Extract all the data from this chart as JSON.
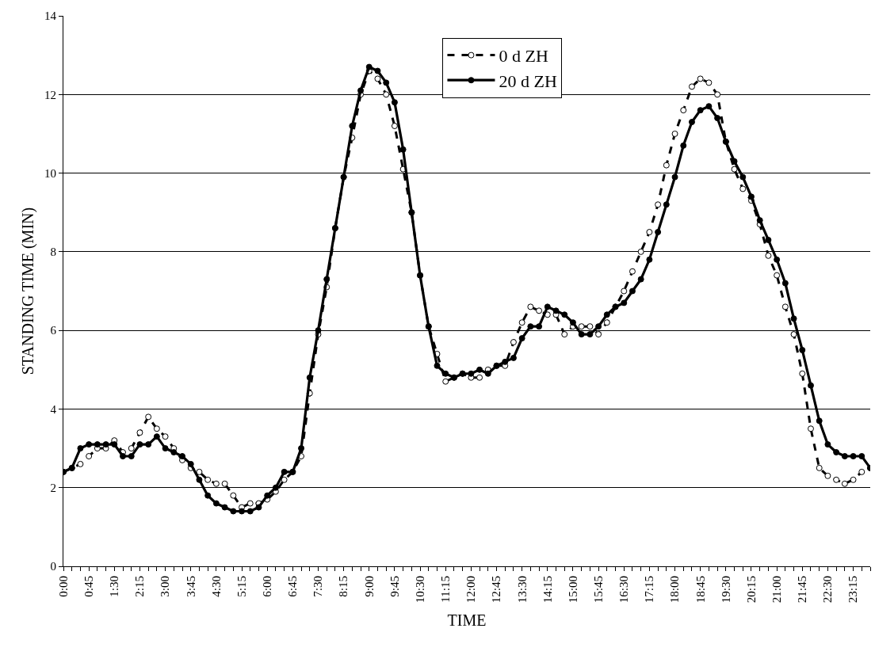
{
  "chart_data": {
    "type": "line",
    "xlabel": "TIME",
    "ylabel": "STANDING TIME (MIN)",
    "x": [
      0,
      0.25,
      0.5,
      0.75,
      1,
      1.25,
      1.5,
      1.75,
      2,
      2.25,
      2.5,
      2.75,
      3,
      3.25,
      3.5,
      3.75,
      4,
      4.25,
      4.5,
      4.75,
      5,
      5.25,
      5.5,
      5.75,
      6,
      6.25,
      6.5,
      6.75,
      7,
      7.25,
      7.5,
      7.75,
      8,
      8.25,
      8.5,
      8.75,
      9,
      9.25,
      9.5,
      9.75,
      10,
      10.25,
      10.5,
      10.75,
      11,
      11.25,
      11.5,
      11.75,
      12,
      12.25,
      12.5,
      12.75,
      13,
      13.25,
      13.5,
      13.75,
      14,
      14.25,
      14.5,
      14.75,
      15,
      15.25,
      15.5,
      15.75,
      16,
      16.25,
      16.5,
      16.75,
      17,
      17.25,
      17.5,
      17.75,
      18,
      18.25,
      18.5,
      18.75,
      19,
      19.25,
      19.5,
      19.75,
      20,
      20.25,
      20.5,
      20.75,
      21,
      21.25,
      21.5,
      21.75,
      22,
      22.25,
      22.5,
      22.75,
      23,
      23.25,
      23.5,
      23.75
    ],
    "series": [
      {
        "name": "0 d ZH",
        "color": "#000000",
        "line_style": "dashed",
        "values": [
          2.4,
          2.5,
          2.6,
          2.8,
          3.0,
          3.0,
          3.2,
          2.9,
          3.0,
          3.4,
          3.8,
          3.5,
          3.3,
          3.0,
          2.7,
          2.5,
          2.4,
          2.2,
          2.1,
          2.1,
          1.8,
          1.5,
          1.6,
          1.6,
          1.7,
          1.9,
          2.2,
          2.4,
          2.8,
          4.4,
          5.9,
          7.1,
          8.6,
          9.9,
          10.9,
          12.0,
          12.6,
          12.4,
          12.0,
          11.2,
          10.1,
          9.0,
          7.4,
          6.1,
          5.4,
          4.7,
          4.8,
          4.9,
          4.8,
          4.8,
          5.0,
          5.1,
          5.1,
          5.7,
          6.2,
          6.6,
          6.5,
          6.4,
          6.4,
          5.9,
          6.1,
          6.1,
          6.1,
          5.9,
          6.2,
          6.6,
          7.0,
          7.5,
          8.0,
          8.5,
          9.2,
          10.2,
          11.0,
          11.6,
          12.2,
          12.4,
          12.3,
          12.0,
          10.8,
          10.1,
          9.6,
          9.3,
          8.7,
          7.9,
          7.4,
          6.6,
          5.9,
          4.9,
          3.5,
          2.5,
          2.3,
          2.2,
          2.1,
          2.2,
          2.4,
          2.5
        ]
      },
      {
        "name": "20 d ZH",
        "color": "#000000",
        "line_style": "solid",
        "values": [
          2.4,
          2.5,
          3.0,
          3.1,
          3.1,
          3.1,
          3.1,
          2.8,
          2.8,
          3.1,
          3.1,
          3.3,
          3.0,
          2.9,
          2.8,
          2.6,
          2.2,
          1.8,
          1.6,
          1.5,
          1.4,
          1.4,
          1.4,
          1.5,
          1.8,
          2.0,
          2.4,
          2.4,
          3.0,
          4.8,
          6.0,
          7.3,
          8.6,
          9.9,
          11.2,
          12.1,
          12.7,
          12.6,
          12.3,
          11.8,
          10.6,
          9.0,
          7.4,
          6.1,
          5.1,
          4.9,
          4.8,
          4.9,
          4.9,
          5.0,
          4.9,
          5.1,
          5.2,
          5.3,
          5.8,
          6.1,
          6.1,
          6.6,
          6.5,
          6.4,
          6.2,
          5.9,
          5.9,
          6.1,
          6.4,
          6.6,
          6.7,
          7.0,
          7.3,
          7.8,
          8.5,
          9.2,
          9.9,
          10.7,
          11.3,
          11.6,
          11.7,
          11.4,
          10.8,
          10.3,
          9.9,
          9.4,
          8.8,
          8.3,
          7.8,
          7.2,
          6.3,
          5.5,
          4.6,
          3.7,
          3.1,
          2.9,
          2.8,
          2.8,
          2.8,
          2.5
        ]
      }
    ],
    "xlim": [
      0,
      23.75
    ],
    "xticks": [
      {
        "value": 0,
        "label": "0:00"
      },
      {
        "value": 0.25,
        "label": null
      },
      {
        "value": 0.5,
        "label": null
      },
      {
        "value": 0.75,
        "label": "0:45"
      },
      {
        "value": 1,
        "label": null
      },
      {
        "value": 1.25,
        "label": null
      },
      {
        "value": 1.5,
        "label": "1:30"
      },
      {
        "value": 1.75,
        "label": null
      },
      {
        "value": 2,
        "label": null
      },
      {
        "value": 2.25,
        "label": "2:15"
      },
      {
        "value": 2.5,
        "label": null
      },
      {
        "value": 2.75,
        "label": null
      },
      {
        "value": 3,
        "label": "3:00"
      },
      {
        "value": 3.25,
        "label": null
      },
      {
        "value": 3.5,
        "label": null
      },
      {
        "value": 3.75,
        "label": "3:45"
      },
      {
        "value": 4,
        "label": null
      },
      {
        "value": 4.25,
        "label": null
      },
      {
        "value": 4.5,
        "label": "4:30"
      },
      {
        "value": 4.75,
        "label": null
      },
      {
        "value": 5,
        "label": null
      },
      {
        "value": 5.25,
        "label": "5:15"
      },
      {
        "value": 5.5,
        "label": null
      },
      {
        "value": 5.75,
        "label": null
      },
      {
        "value": 6,
        "label": "6:00"
      },
      {
        "value": 6.25,
        "label": null
      },
      {
        "value": 6.5,
        "label": null
      },
      {
        "value": 6.75,
        "label": "6:45"
      },
      {
        "value": 7,
        "label": null
      },
      {
        "value": 7.25,
        "label": null
      },
      {
        "value": 7.5,
        "label": "7:30"
      },
      {
        "value": 7.75,
        "label": null
      },
      {
        "value": 8,
        "label": null
      },
      {
        "value": 8.25,
        "label": "8:15"
      },
      {
        "value": 8.5,
        "label": null
      },
      {
        "value": 8.75,
        "label": null
      },
      {
        "value": 9,
        "label": "9:00"
      },
      {
        "value": 9.25,
        "label": null
      },
      {
        "value": 9.5,
        "label": null
      },
      {
        "value": 9.75,
        "label": "9:45"
      },
      {
        "value": 10,
        "label": null
      },
      {
        "value": 10.25,
        "label": null
      },
      {
        "value": 10.5,
        "label": "10:30"
      },
      {
        "value": 10.75,
        "label": null
      },
      {
        "value": 11,
        "label": null
      },
      {
        "value": 11.25,
        "label": "11:15"
      },
      {
        "value": 11.5,
        "label": null
      },
      {
        "value": 11.75,
        "label": null
      },
      {
        "value": 12,
        "label": "12:00"
      },
      {
        "value": 12.25,
        "label": null
      },
      {
        "value": 12.5,
        "label": null
      },
      {
        "value": 12.75,
        "label": "12:45"
      },
      {
        "value": 13,
        "label": null
      },
      {
        "value": 13.25,
        "label": null
      },
      {
        "value": 13.5,
        "label": "13:30"
      },
      {
        "value": 13.75,
        "label": null
      },
      {
        "value": 14,
        "label": null
      },
      {
        "value": 14.25,
        "label": "14:15"
      },
      {
        "value": 14.5,
        "label": null
      },
      {
        "value": 14.75,
        "label": null
      },
      {
        "value": 15,
        "label": "15:00"
      },
      {
        "value": 15.25,
        "label": null
      },
      {
        "value": 15.5,
        "label": null
      },
      {
        "value": 15.75,
        "label": "15:45"
      },
      {
        "value": 16,
        "label": null
      },
      {
        "value": 16.25,
        "label": null
      },
      {
        "value": 16.5,
        "label": "16:30"
      },
      {
        "value": 16.75,
        "label": null
      },
      {
        "value": 17,
        "label": null
      },
      {
        "value": 17.25,
        "label": "17:15"
      },
      {
        "value": 17.5,
        "label": null
      },
      {
        "value": 17.75,
        "label": null
      },
      {
        "value": 18,
        "label": "18:00"
      },
      {
        "value": 18.25,
        "label": null
      },
      {
        "value": 18.5,
        "label": null
      },
      {
        "value": 18.75,
        "label": "18:45"
      },
      {
        "value": 19,
        "label": null
      },
      {
        "value": 19.25,
        "label": null
      },
      {
        "value": 19.5,
        "label": "19:30"
      },
      {
        "value": 19.75,
        "label": null
      },
      {
        "value": 20,
        "label": null
      },
      {
        "value": 20.25,
        "label": "20:15"
      },
      {
        "value": 20.5,
        "label": null
      },
      {
        "value": 20.75,
        "label": null
      },
      {
        "value": 21,
        "label": "21:00"
      },
      {
        "value": 21.25,
        "label": null
      },
      {
        "value": 21.5,
        "label": null
      },
      {
        "value": 21.75,
        "label": "21:45"
      },
      {
        "value": 22,
        "label": null
      },
      {
        "value": 22.25,
        "label": null
      },
      {
        "value": 22.5,
        "label": "22:30"
      },
      {
        "value": 22.75,
        "label": null
      },
      {
        "value": 23,
        "label": null
      },
      {
        "value": 23.25,
        "label": "23:15"
      },
      {
        "value": 23.5,
        "label": null
      },
      {
        "value": 23.75,
        "label": null
      }
    ],
    "ylim": [
      0,
      14
    ],
    "yticks": [
      0,
      2,
      4,
      6,
      8,
      10,
      12,
      14
    ],
    "grid": "y",
    "legend": "top",
    "marker": "circle"
  }
}
